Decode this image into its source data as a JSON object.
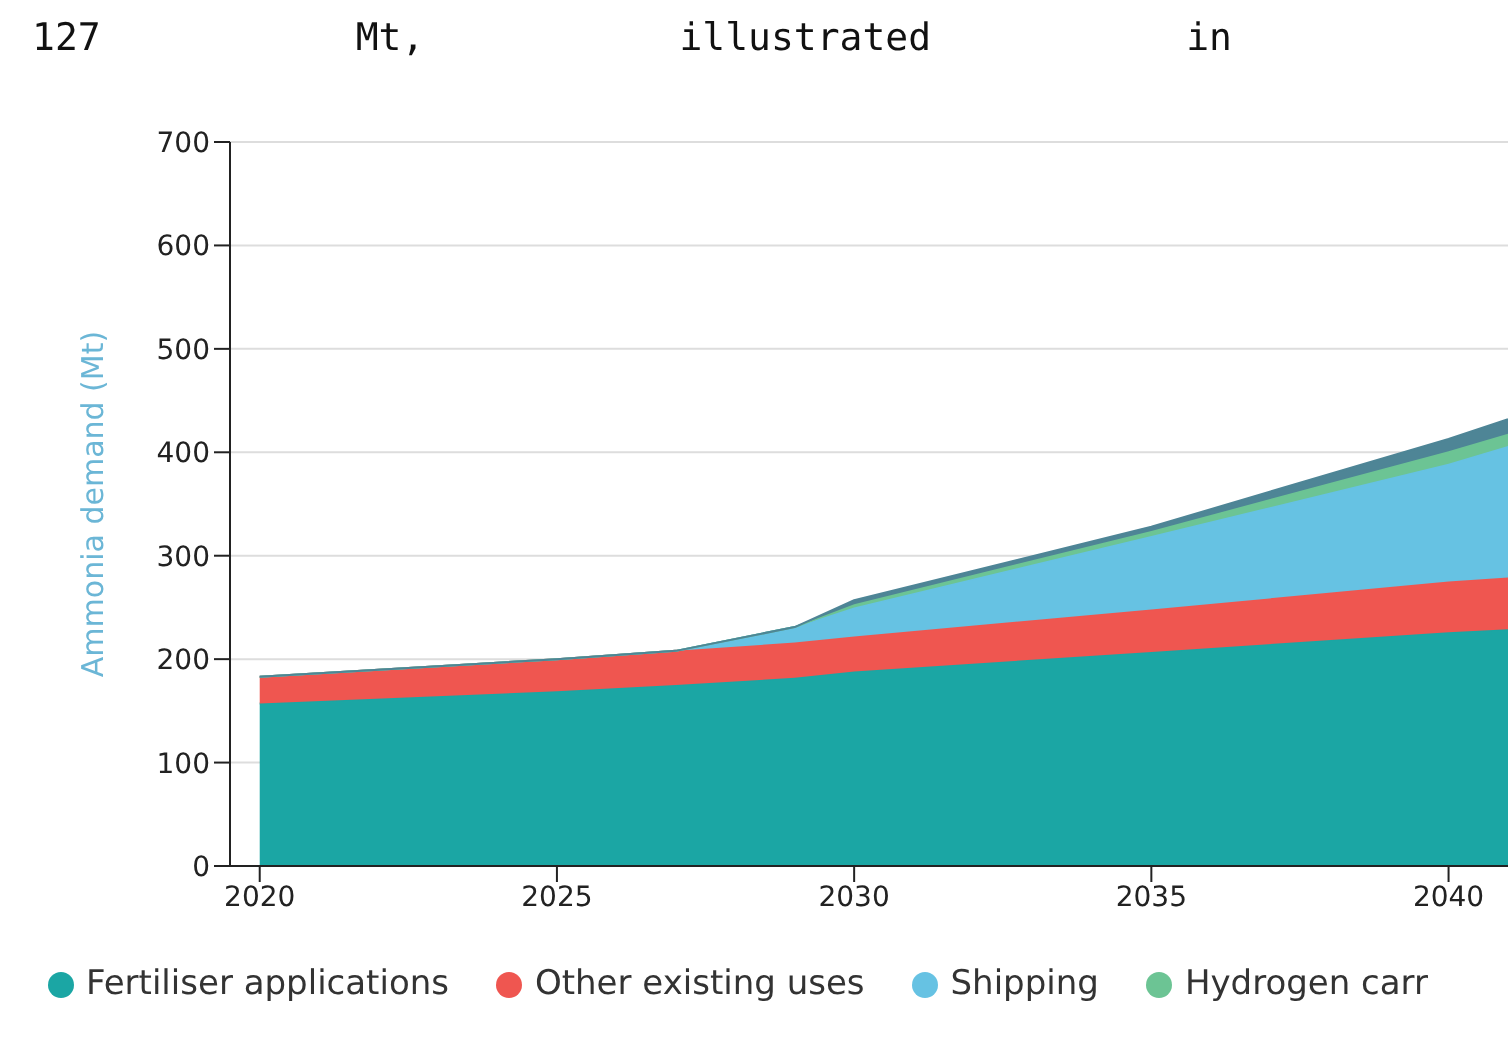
{
  "chart_data": {
    "type": "area",
    "stacked": true,
    "annotations": [
      "127 Mt, illustrated in"
    ],
    "ylabel": "Ammonia demand (Mt)",
    "x": [
      2020,
      2025,
      2027,
      2029,
      2030,
      2035,
      2040,
      2041
    ],
    "series": [
      {
        "name": "Fertiliser applications",
        "color": "#1ba6a4",
        "values": [
          157,
          169,
          175,
          182,
          188,
          207,
          226,
          229
        ]
      },
      {
        "name": "Other existing uses",
        "color": "#ef5650",
        "values": [
          26,
          31,
          33,
          34,
          34,
          41,
          49,
          50
        ]
      },
      {
        "name": "Shipping",
        "color": "#66c2e3",
        "values": [
          0,
          0,
          0,
          15,
          28,
          71,
          114,
          127
        ]
      },
      {
        "name": "Hydrogen carr",
        "color": "#6cc494",
        "values": [
          0,
          0,
          0,
          0,
          3,
          5,
          12,
          12
        ]
      },
      {
        "color": "#4e8596",
        "values": [
          0,
          0,
          0,
          0,
          4,
          4,
          12,
          14
        ]
      }
    ],
    "xlim": [
      2019.5,
      2041
    ],
    "xticks": [
      2020,
      2025,
      2030,
      2035,
      2040
    ],
    "ylim": [
      0,
      700
    ],
    "yticks": [
      0,
      100,
      200,
      300,
      400,
      500,
      600,
      700
    ],
    "grid": "y",
    "legend": "bottom"
  }
}
